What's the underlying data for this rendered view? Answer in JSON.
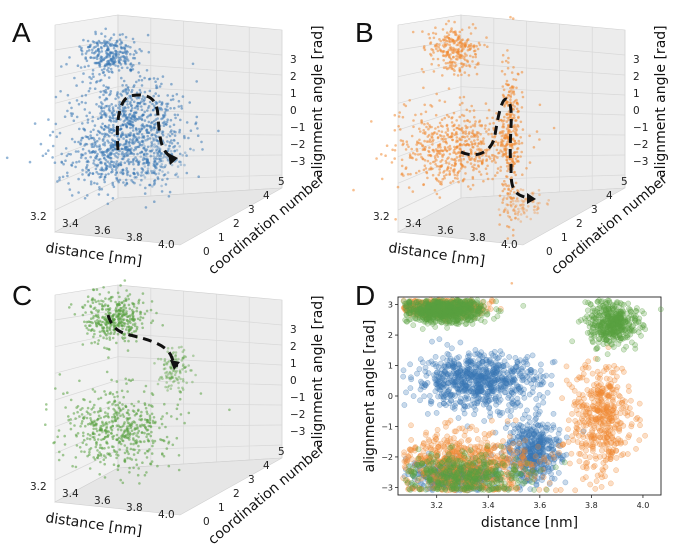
{
  "chart_data": [
    {
      "panel": "A",
      "type": "scatter3d",
      "color": "#3a78b5",
      "xlabel": "distance [nm]",
      "ylabel": "coordination number",
      "zlabel": "alignment angle [rad]",
      "xticks": [
        "3.2",
        "3.4",
        "3.6",
        "3.8",
        "4.0"
      ],
      "yticks": [
        "0",
        "1",
        "2",
        "3",
        "4",
        "5"
      ],
      "zticks": [
        "3",
        "2",
        "1",
        "0",
        "−1",
        "−2",
        "−3"
      ],
      "clusters": [
        {
          "distance": 3.25,
          "coordination": 1.0,
          "angle": 2.8
        },
        {
          "distance": 3.45,
          "coordination": 1.5,
          "angle": 0.2
        },
        {
          "distance": 3.35,
          "coordination": 1.3,
          "angle": -2.6
        }
      ],
      "path": "dashed transition from angle ~0 down to ~-3"
    },
    {
      "panel": "B",
      "type": "scatter3d",
      "color": "#f08a33",
      "xlabel": "distance [nm]",
      "ylabel": "coordination number",
      "zlabel": "alignment angle [rad]",
      "xticks": [
        "3.2",
        "3.4",
        "3.6",
        "3.8",
        "4.0"
      ],
      "yticks": [
        "0",
        "1",
        "2",
        "3",
        "4",
        "5"
      ],
      "zticks": [
        "3",
        "2",
        "1",
        "0",
        "−1",
        "−2",
        "−3"
      ],
      "clusters": [
        {
          "distance": 3.25,
          "coordination": 1.0,
          "angle": 2.8
        },
        {
          "distance": 3.3,
          "coordination": 1.5,
          "angle": -2.4
        },
        {
          "distance": 3.85,
          "coordination": 2.0,
          "angle": -1.0
        }
      ],
      "path": "dashed transition from ~-2 up to ~0 then down to ~-3"
    },
    {
      "panel": "C",
      "type": "scatter3d",
      "color": "#58a03f",
      "xlabel": "distance [nm]",
      "ylabel": "coordination number",
      "zlabel": "alignment angle [rad]",
      "xticks": [
        "3.2",
        "3.4",
        "3.6",
        "3.8",
        "4.0"
      ],
      "yticks": [
        "0",
        "1",
        "2",
        "3",
        "4",
        "5"
      ],
      "zticks": [
        "3",
        "2",
        "1",
        "0",
        "−1",
        "−2",
        "−3"
      ],
      "clusters": [
        {
          "distance": 3.25,
          "coordination": 1.0,
          "angle": 3.0
        },
        {
          "distance": 3.85,
          "coordination": 2.0,
          "angle": 2.5
        },
        {
          "distance": 3.35,
          "coordination": 1.3,
          "angle": -2.6
        }
      ],
      "path": "dashed transition from ~3 down to ~1"
    },
    {
      "panel": "D",
      "type": "scatter",
      "xlabel": "distance [nm]",
      "ylabel": "alignment angle [rad]",
      "xlim": [
        3.05,
        4.07
      ],
      "ylim": [
        -3.25,
        3.25
      ],
      "xticks": [
        "3.2",
        "3.4",
        "3.6",
        "3.8",
        "4.0"
      ],
      "yticks": [
        "3",
        "2",
        "1",
        "0",
        "−1",
        "−2",
        "−3"
      ],
      "series": [
        {
          "name": "blue",
          "color": "#3a78b5",
          "clusters": [
            {
              "x": 3.36,
              "y": 0.5,
              "sx": 0.12,
              "sy": 0.45
            },
            {
              "x": 3.27,
              "y": -2.6,
              "sx": 0.09,
              "sy": 0.25
            },
            {
              "x": 3.58,
              "y": -1.8,
              "sx": 0.05,
              "sy": 0.5
            }
          ]
        },
        {
          "name": "orange",
          "color": "#f08a33",
          "clusters": [
            {
              "x": 3.3,
              "y": -2.3,
              "sx": 0.14,
              "sy": 0.55
            },
            {
              "x": 3.84,
              "y": -0.8,
              "sx": 0.06,
              "sy": 0.9
            },
            {
              "x": 3.22,
              "y": 2.9,
              "sx": 0.08,
              "sy": 0.15
            }
          ]
        },
        {
          "name": "green",
          "color": "#58a03f",
          "clusters": [
            {
              "x": 3.23,
              "y": 2.8,
              "sx": 0.08,
              "sy": 0.2
            },
            {
              "x": 3.88,
              "y": 2.4,
              "sx": 0.05,
              "sy": 0.35
            },
            {
              "x": 3.3,
              "y": -2.6,
              "sx": 0.12,
              "sy": 0.35
            }
          ]
        }
      ]
    }
  ]
}
